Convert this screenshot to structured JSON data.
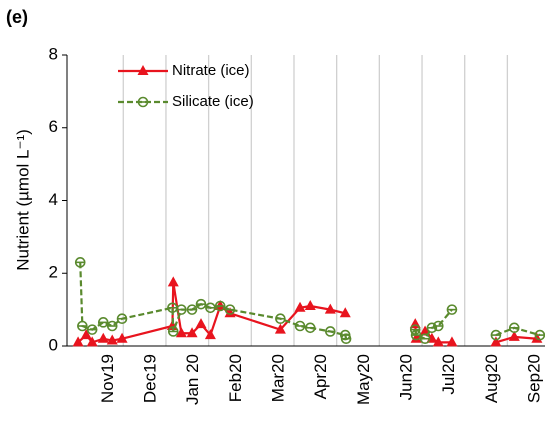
{
  "chart_data": {
    "type": "line",
    "title": "(e)",
    "y_label": "Nutrient (µmol L⁻¹)",
    "xlim": [
      -0.85,
      10.35
    ],
    "xticks": [
      {
        "value": 0,
        "label": "Nov19"
      },
      {
        "value": 1,
        "label": "Dec19"
      },
      {
        "value": 2,
        "label": "Jan 20"
      },
      {
        "value": 3,
        "label": "Feb20"
      },
      {
        "value": 4,
        "label": "Mar20"
      },
      {
        "value": 5,
        "label": "Apr20"
      },
      {
        "value": 6,
        "label": "May20"
      },
      {
        "value": 7,
        "label": "Jun20"
      },
      {
        "value": 8,
        "label": "Jul20"
      },
      {
        "value": 9,
        "label": "Aug20"
      },
      {
        "value": 10,
        "label": "Sep20"
      }
    ],
    "ylim": [
      0,
      8
    ],
    "yticks": [
      0,
      2,
      4,
      6,
      8
    ],
    "grid": true,
    "series": [
      {
        "name": "Nitrate (ice)",
        "color": "#e8141e",
        "marker": "triangle",
        "dash": false,
        "x": [
          -0.59,
          -0.4,
          -0.26,
          0,
          0.21,
          0.44,
          1.62,
          1.64,
          1.83,
          2.08,
          2.29,
          2.51,
          2.74,
          2.97,
          4.15,
          4.61,
          4.85,
          5.32,
          5.67,
          6.5,
          7.31,
          7.33,
          7.54,
          7.7,
          7.85,
          8.17,
          8.7,
          9.2,
          9.63,
          10.16
        ],
        "values": [
          0.1,
          0.3,
          0.1,
          0.2,
          0.15,
          0.2,
          0.55,
          1.75,
          0.35,
          0.35,
          0.6,
          0.3,
          1.1,
          0.9,
          0.45,
          1.05,
          1.1,
          1.0,
          0.9,
          null,
          0.6,
          0.2,
          0.4,
          0.2,
          0.1,
          0.1,
          null,
          0.1,
          0.25,
          0.2
        ]
      },
      {
        "name": "Silicate (ice)",
        "color": "#5a8a2e",
        "marker": "circle",
        "dash": true,
        "x": [
          -0.54,
          -0.49,
          -0.26,
          0,
          0.21,
          0.44,
          1.62,
          1.64,
          1.83,
          2.08,
          2.29,
          2.51,
          2.74,
          2.97,
          4.15,
          4.61,
          4.85,
          5.32,
          5.67,
          5.69,
          6.5,
          7.31,
          7.33,
          7.54,
          7.7,
          7.85,
          8.17,
          8.7,
          9.2,
          9.63,
          10.23
        ],
        "values": [
          2.3,
          0.55,
          0.45,
          0.65,
          0.55,
          0.75,
          1.05,
          0.4,
          1.0,
          1.0,
          1.15,
          1.05,
          1.1,
          1.0,
          0.75,
          0.55,
          0.5,
          0.4,
          0.3,
          0.2,
          null,
          0.45,
          0.3,
          0.2,
          0.5,
          0.55,
          1.0,
          null,
          0.3,
          0.5,
          0.3
        ]
      }
    ]
  }
}
